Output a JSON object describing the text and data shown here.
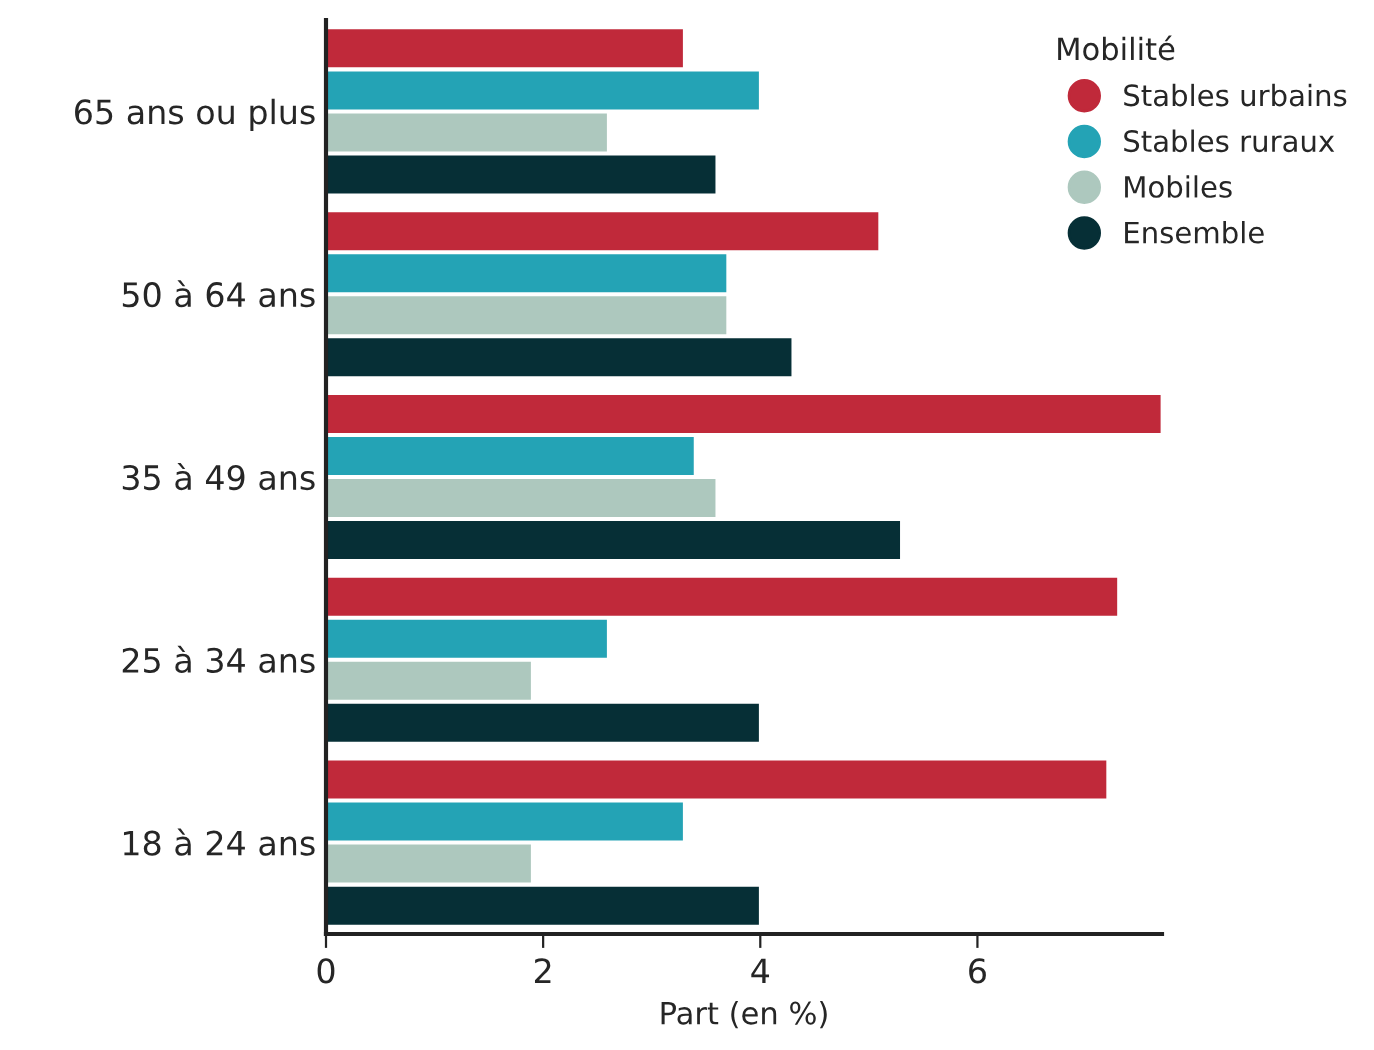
{
  "chart_data": {
    "type": "bar",
    "orientation": "horizontal",
    "xlabel": "Part (en %)",
    "legend_title": "Mobilité",
    "legend": "top right",
    "marker": "circle",
    "grid": false,
    "categories": [
      "65 ans ou plus",
      "50 à 64 ans",
      "35 à 49 ans",
      "25 à 34 ans",
      "18 à 24 ans"
    ],
    "xlim": [
      0,
      7.7
    ],
    "xticks": [
      0,
      2,
      4,
      6
    ],
    "series": [
      {
        "name": "Stables urbains",
        "color": "#c0293a",
        "values": [
          3.3,
          5.1,
          7.7,
          7.3,
          7.2
        ]
      },
      {
        "name": "Stables ruraux",
        "color": "#24a3b5",
        "values": [
          4.0,
          3.7,
          3.4,
          2.6,
          3.3
        ]
      },
      {
        "name": "Mobiles",
        "color": "#adc8be",
        "values": [
          2.6,
          3.7,
          3.6,
          1.9,
          1.9
        ]
      },
      {
        "name": "Ensemble",
        "color": "#062f36",
        "values": [
          3.6,
          4.3,
          5.3,
          4.0,
          4.0
        ]
      }
    ]
  }
}
